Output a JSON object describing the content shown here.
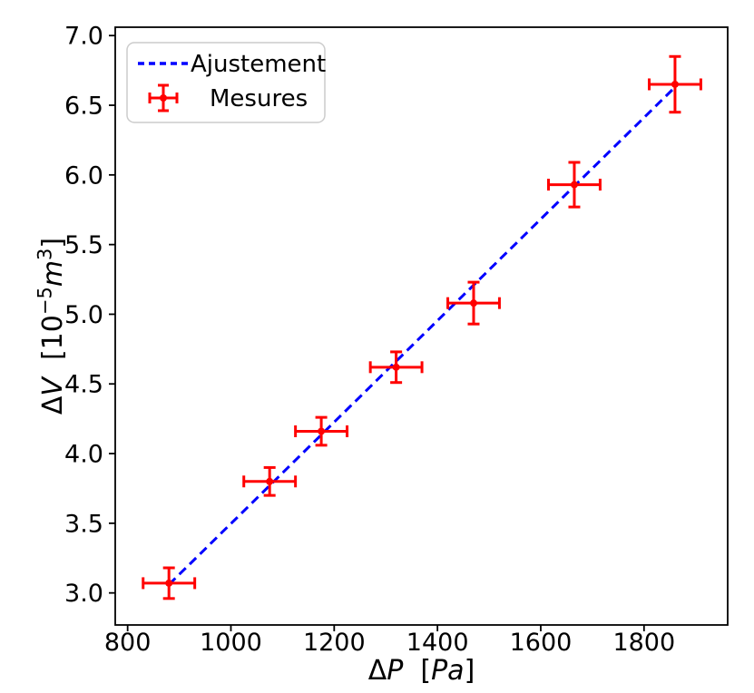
{
  "figure": {
    "background": "#ffffff",
    "spine_color": "#000000"
  },
  "chart_data": {
    "type": "scatter",
    "title": "",
    "xlabel": "ΔP  [Pa]",
    "ylabel": "ΔV  [10⁻⁵m³]",
    "xlabel_rich": [
      {
        "t": "ΔP  [Pa]"
      }
    ],
    "ylabel_rich": [
      {
        "t": "ΔV  [10"
      },
      {
        "t": "−5",
        "sup": 1
      },
      {
        "t": "m"
      },
      {
        "t": "3",
        "sup": 1
      },
      {
        "t": "]"
      }
    ],
    "xlim": [
      776,
      1962
    ],
    "ylim": [
      2.77,
      7.06
    ],
    "x_ticks": [
      800,
      1000,
      1200,
      1400,
      1600,
      1800
    ],
    "x_tick_labels": [
      "800",
      "1000",
      "1200",
      "1400",
      "1600",
      "1800"
    ],
    "y_ticks": [
      3.0,
      3.5,
      4.0,
      4.5,
      5.0,
      5.5,
      6.0,
      6.5,
      7.0
    ],
    "y_tick_labels": [
      "3.0",
      "3.5",
      "4.0",
      "4.5",
      "5.0",
      "5.5",
      "6.0",
      "6.5",
      "7.0"
    ],
    "grid": false,
    "legend": {
      "position": "upper left",
      "border_color": "#cccccc",
      "background": "#ffffff"
    },
    "series": [
      {
        "name": "Ajustement",
        "type": "line",
        "linestyle": "dashed",
        "color": "#0000ff",
        "x": [
          880,
          1860
        ],
        "y": [
          3.06,
          6.63
        ]
      },
      {
        "name": "Mesures",
        "type": "errorbar",
        "color": "#ff0000",
        "x": [
          880,
          1075,
          1175,
          1320,
          1470,
          1665,
          1860
        ],
        "y": [
          3.07,
          3.8,
          4.16,
          4.62,
          5.08,
          5.93,
          6.65
        ],
        "xerr": [
          50,
          50,
          50,
          50,
          50,
          50,
          50
        ],
        "yerr": [
          0.11,
          0.1,
          0.1,
          0.11,
          0.15,
          0.16,
          0.2
        ]
      }
    ]
  }
}
